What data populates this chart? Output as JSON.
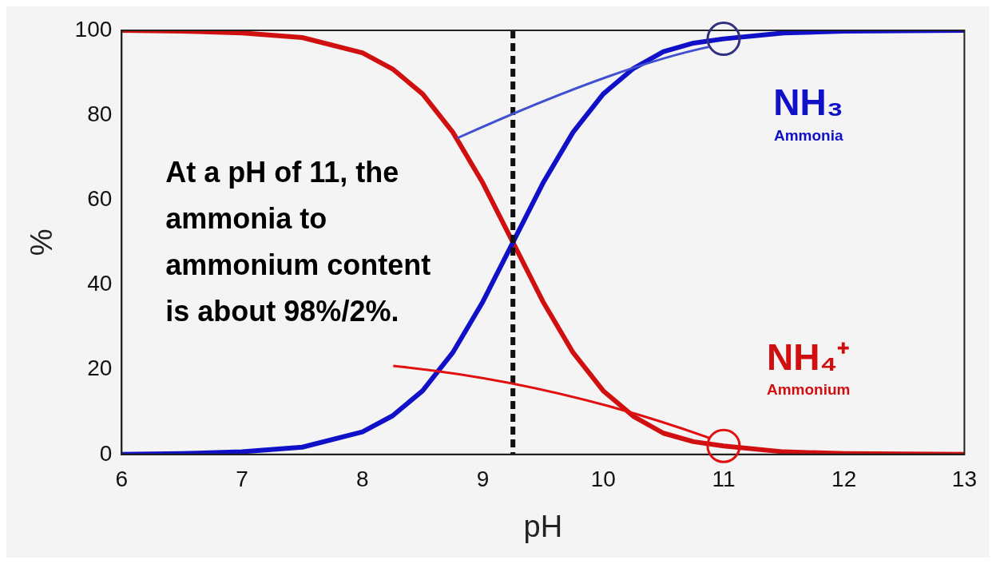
{
  "chart_data": {
    "type": "line",
    "xlabel": "pH",
    "ylabel": "%",
    "xlim": [
      6,
      13
    ],
    "ylim": [
      0,
      100
    ],
    "xticks": [
      6,
      7,
      8,
      9,
      10,
      11,
      12,
      13
    ],
    "yticks": [
      0,
      20,
      40,
      60,
      80,
      100
    ],
    "grid": false,
    "legend": false,
    "marker": "none",
    "line_style": "solid",
    "x": [
      6,
      6.5,
      7,
      7.5,
      8,
      8.25,
      8.5,
      8.75,
      9,
      9.25,
      9.5,
      9.75,
      10,
      10.25,
      10.5,
      10.75,
      11,
      11.5,
      12,
      12.5,
      13
    ],
    "series": [
      {
        "name": "NH₃",
        "color": "#1010c8",
        "values": [
          0,
          0.2,
          0.6,
          1.7,
          5.3,
          9.1,
          15,
          24,
          36,
          50,
          64,
          76,
          85,
          91,
          95,
          97,
          98,
          99.4,
          99.8,
          99.9,
          100
        ]
      },
      {
        "name": "NH₄⁺",
        "color": "#d01010",
        "values": [
          100,
          99.8,
          99.4,
          98.3,
          94.7,
          90.9,
          85,
          76,
          64,
          50,
          36,
          24,
          15,
          9,
          5,
          3,
          2,
          0.6,
          0.2,
          0.1,
          0
        ]
      }
    ],
    "ref_lines": [
      {
        "axis": "x",
        "value": 9.25,
        "color": "#111111",
        "line_style": "dashed"
      }
    ],
    "annotations": [
      "At a pH of 11, the ammonia to ammonium content is about 98%/2%.",
      "Ammonia",
      "Ammonium"
    ]
  }
}
